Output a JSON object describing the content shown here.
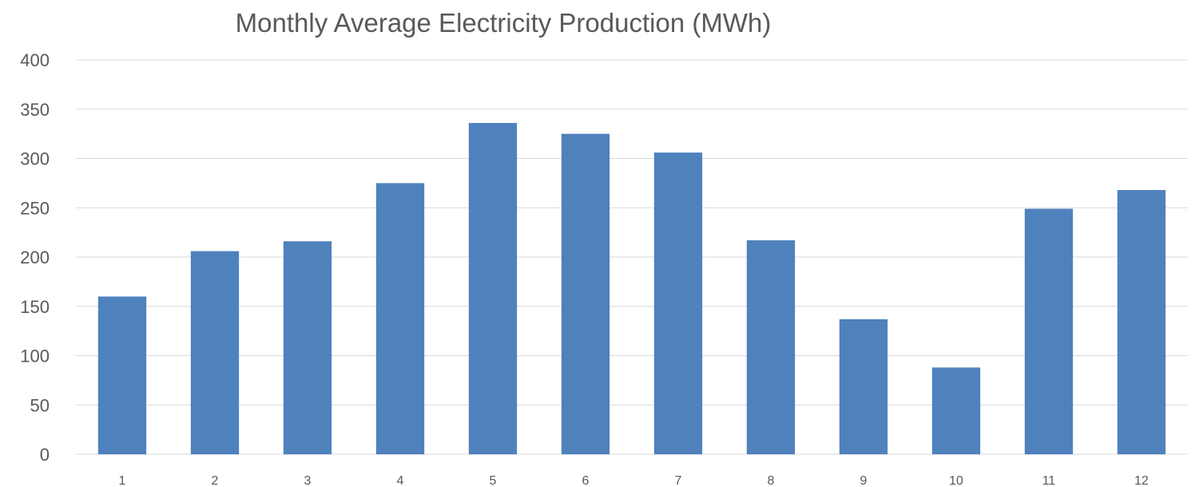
{
  "chart_data": {
    "type": "bar",
    "title": "Monthly Average Electricity Production (MWh)",
    "xlabel": "",
    "ylabel": "",
    "categories": [
      "1",
      "2",
      "3",
      "4",
      "5",
      "6",
      "7",
      "8",
      "9",
      "10",
      "11",
      "12"
    ],
    "values": [
      160,
      206,
      216,
      275,
      336,
      325,
      306,
      217,
      137,
      88,
      249,
      268
    ],
    "ylim": [
      0,
      400
    ],
    "yticks": [
      "0",
      "50",
      "100",
      "150",
      "200",
      "250",
      "300",
      "350",
      "400"
    ],
    "grid": true,
    "legend": "none",
    "bar_color": "#4f81bd"
  }
}
